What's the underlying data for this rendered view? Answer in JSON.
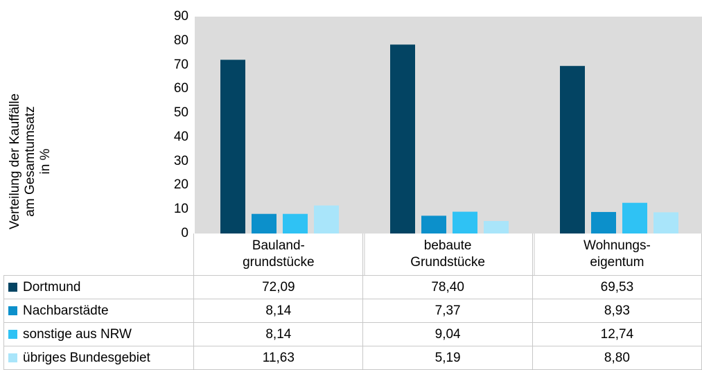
{
  "chart_data": {
    "type": "bar",
    "ylabel_lines": [
      "Verteilung der Kauffälle",
      "am Gesamtumsatz",
      "in %"
    ],
    "ylim": [
      0,
      90
    ],
    "yticks": [
      "0",
      "10",
      "20",
      "30",
      "40",
      "50",
      "60",
      "70",
      "80",
      "90"
    ],
    "categories": [
      {
        "lines": [
          "Bauland-",
          "grundstücke"
        ]
      },
      {
        "lines": [
          "bebaute",
          "Grundstücke"
        ]
      },
      {
        "lines": [
          "Wohnungs-",
          "eigentum"
        ]
      }
    ],
    "series": [
      {
        "name": "Dortmund",
        "color": "#034463",
        "values": [
          72.09,
          78.4,
          69.53
        ],
        "labels": [
          "72,09",
          "78,40",
          "69,53"
        ]
      },
      {
        "name": "Nachbarstädte",
        "color": "#0c90cb",
        "values": [
          8.14,
          7.37,
          8.93
        ],
        "labels": [
          "8,14",
          "7,37",
          "8,93"
        ]
      },
      {
        "name": "sonstige aus NRW",
        "color": "#2fc2f4",
        "values": [
          8.14,
          9.04,
          12.74
        ],
        "labels": [
          "8,14",
          "9,04",
          "12,74"
        ]
      },
      {
        "name": "übriges Bundesgebiet",
        "color": "#a9e5fa",
        "values": [
          11.63,
          5.19,
          8.8
        ],
        "labels": [
          "11,63",
          "5,19",
          "8,80"
        ]
      }
    ],
    "plot_background": "#dcdcdc",
    "legend": "table"
  }
}
